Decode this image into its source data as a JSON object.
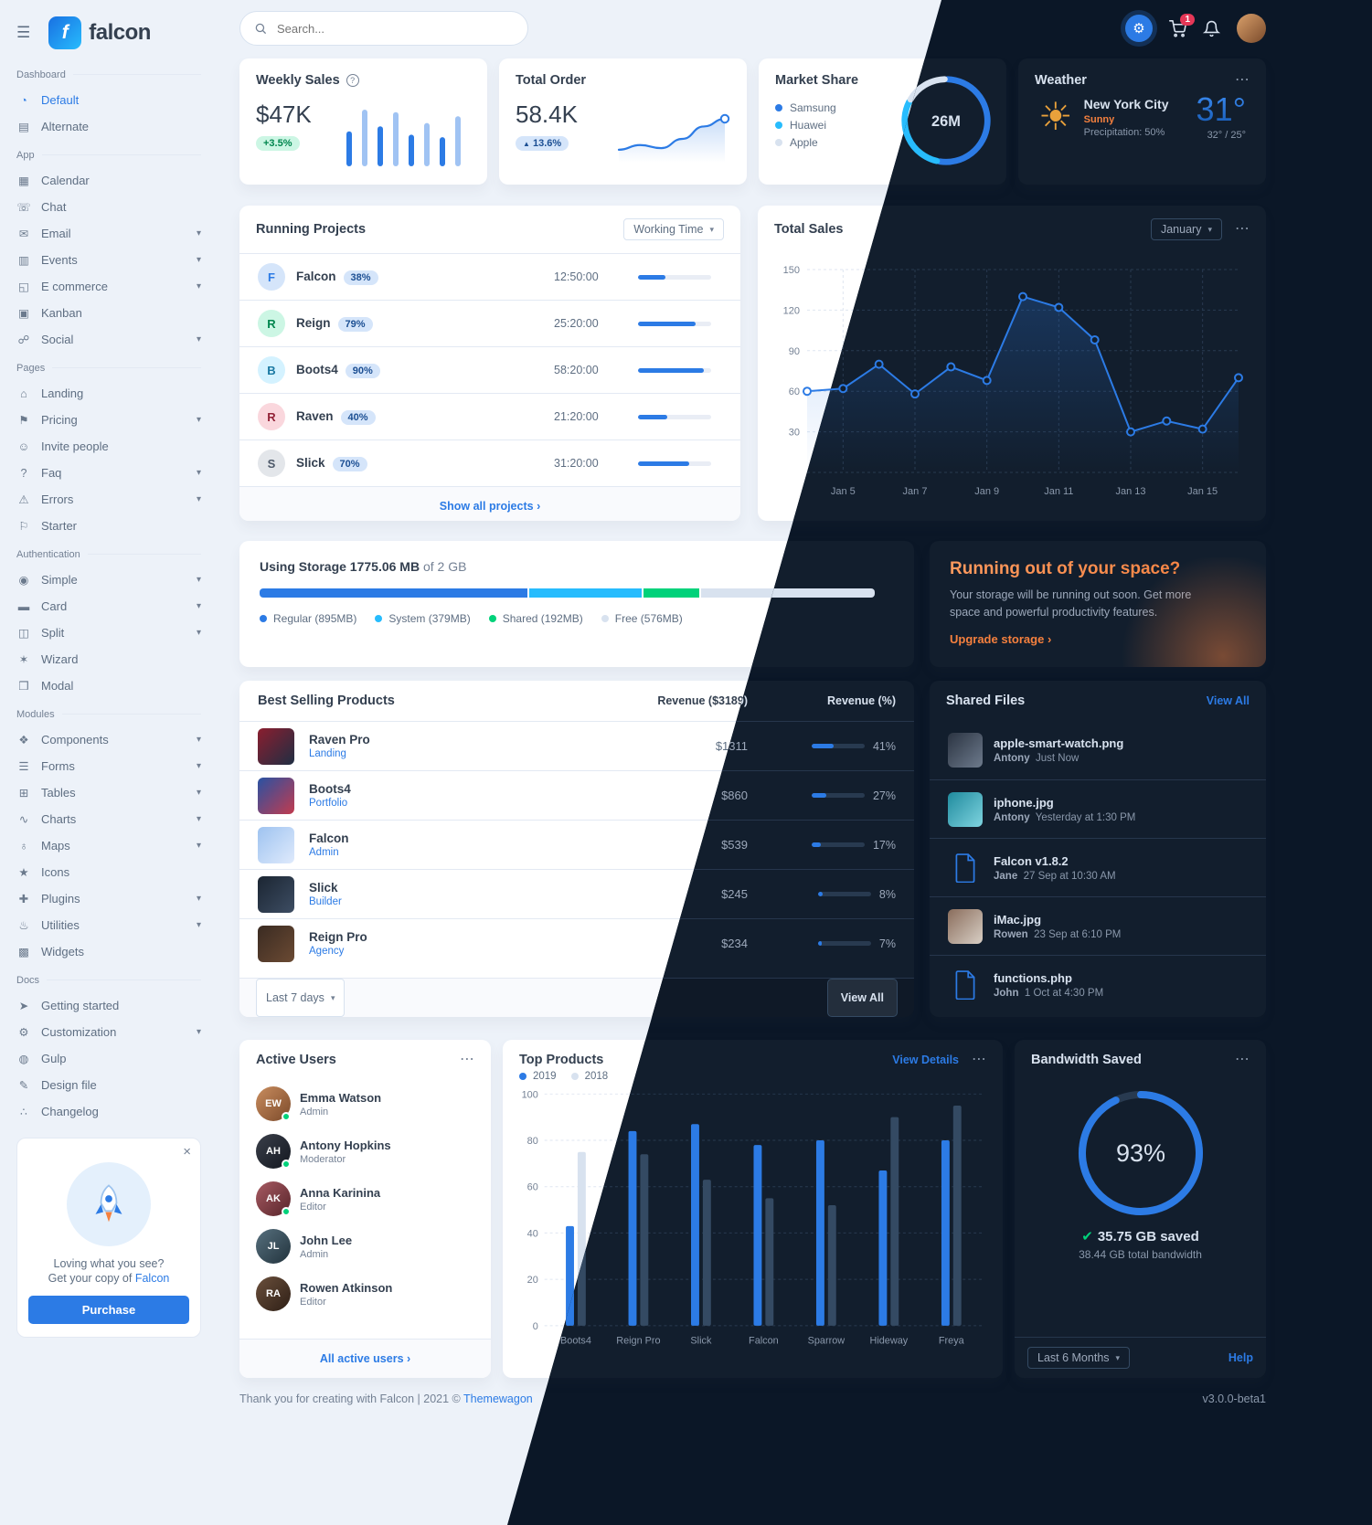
{
  "brand": {
    "name": "falcon",
    "logo_letter": "f"
  },
  "icons": {
    "menu": "☰",
    "gear": "⚙",
    "chevron_down": "▾",
    "chevron_right": "›",
    "more": "⋯",
    "close": "×",
    "check": "✔",
    "arrow_up": "▲",
    "info": "?",
    "sun": "☀"
  },
  "icon_glyphs": {
    "pie": "◔",
    "chart": "▤",
    "calendar": "▦",
    "chat": "☏",
    "email": "✉",
    "events": "▥",
    "ecommerce": "◱",
    "kanban": "▣",
    "social": "☍",
    "landing": "⌂",
    "pricing": "⚑",
    "invite": "☺",
    "faq": "?",
    "errors": "⚠",
    "starter": "⚐",
    "lock": "◉",
    "card": "▬",
    "split": "◫",
    "wizard": "✶",
    "modal": "❒",
    "components": "❖",
    "forms": "☰",
    "tables": "⊞",
    "charts": "∿",
    "maps": "♁",
    "icons": "★",
    "plugins": "✚",
    "utilities": "♨",
    "widgets": "▩",
    "rocket": "➤",
    "wrench": "⚙",
    "gulp": "◍",
    "design": "✎",
    "changelog": "∴"
  },
  "topbar": {
    "search_placeholder": "Search...",
    "cart_badge": "1"
  },
  "sidebar": {
    "sections": [
      {
        "label": "Dashboard",
        "items": [
          {
            "label": "Default",
            "icon": "pie",
            "active": true
          },
          {
            "label": "Alternate",
            "icon": "chart"
          }
        ]
      },
      {
        "label": "App",
        "items": [
          {
            "label": "Calendar",
            "icon": "calendar"
          },
          {
            "label": "Chat",
            "icon": "chat"
          },
          {
            "label": "Email",
            "icon": "email",
            "caret": true
          },
          {
            "label": "Events",
            "icon": "events",
            "caret": true
          },
          {
            "label": "E commerce",
            "icon": "ecommerce",
            "caret": true
          },
          {
            "label": "Kanban",
            "icon": "kanban"
          },
          {
            "label": "Social",
            "icon": "social",
            "caret": true
          }
        ]
      },
      {
        "label": "Pages",
        "items": [
          {
            "label": "Landing",
            "icon": "landing"
          },
          {
            "label": "Pricing",
            "icon": "pricing",
            "caret": true
          },
          {
            "label": "Invite people",
            "icon": "invite"
          },
          {
            "label": "Faq",
            "icon": "faq",
            "caret": true
          },
          {
            "label": "Errors",
            "icon": "errors",
            "caret": true
          },
          {
            "label": "Starter",
            "icon": "starter"
          }
        ]
      },
      {
        "label": "Authentication",
        "items": [
          {
            "label": "Simple",
            "icon": "lock",
            "caret": true
          },
          {
            "label": "Card",
            "icon": "card",
            "caret": true
          },
          {
            "label": "Split",
            "icon": "split",
            "caret": true
          },
          {
            "label": "Wizard",
            "icon": "wizard"
          },
          {
            "label": "Modal",
            "icon": "modal"
          }
        ]
      },
      {
        "label": "Modules",
        "items": [
          {
            "label": "Components",
            "icon": "components",
            "caret": true
          },
          {
            "label": "Forms",
            "icon": "forms",
            "caret": true
          },
          {
            "label": "Tables",
            "icon": "tables",
            "caret": true
          },
          {
            "label": "Charts",
            "icon": "charts",
            "caret": true
          },
          {
            "label": "Maps",
            "icon": "maps",
            "caret": true
          },
          {
            "label": "Icons",
            "icon": "icons"
          },
          {
            "label": "Plugins",
            "icon": "plugins",
            "caret": true
          },
          {
            "label": "Utilities",
            "icon": "utilities",
            "caret": true
          },
          {
            "label": "Widgets",
            "icon": "widgets"
          }
        ]
      },
      {
        "label": "Docs",
        "items": [
          {
            "label": "Getting started",
            "icon": "rocket"
          },
          {
            "label": "Customization",
            "icon": "wrench",
            "caret": true
          },
          {
            "label": "Gulp",
            "icon": "gulp"
          },
          {
            "label": "Design file",
            "icon": "design"
          },
          {
            "label": "Changelog",
            "icon": "changelog"
          }
        ]
      }
    ],
    "promo": {
      "line1": "Loving what you see?",
      "line2_prefix": "Get your copy of",
      "line2_link": "Falcon",
      "button": "Purchase"
    }
  },
  "cards": {
    "weekly_sales": {
      "title": "Weekly Sales",
      "value": "$47K",
      "badge": "+3.5%",
      "chart": {
        "type": "bar",
        "values": [
          42,
          68,
          48,
          65,
          38,
          52,
          35,
          60
        ]
      }
    },
    "total_order": {
      "title": "Total Order",
      "value": "58.4K",
      "badge": "13.6%",
      "chart": {
        "type": "line",
        "values": [
          12,
          18,
          14,
          26,
          42,
          52
        ]
      }
    },
    "market_share": {
      "title": "Market Share",
      "center": "26M",
      "legend": [
        {
          "label": "Samsung",
          "color": "#2c7be5",
          "value": 53
        },
        {
          "label": "Huawei",
          "color": "#27bcfd",
          "value": 30
        },
        {
          "label": "Apple",
          "color": "#d8e2ef",
          "value": 17
        }
      ]
    },
    "weather": {
      "title": "Weather",
      "city": "New York City",
      "condition": "Sunny",
      "precipitation": "Precipitation: 50%",
      "temp": "31°",
      "range": "32° / 25°"
    },
    "running_projects": {
      "title": "Running Projects",
      "filter": "Working Time",
      "show_all": "Show all projects",
      "projects": [
        {
          "initial": "F",
          "name": "Falcon",
          "percent": "38%",
          "time": "12:50:00",
          "progress": 38,
          "color": "#2c7be5",
          "bg": "#d5e5fa"
        },
        {
          "initial": "R",
          "name": "Reign",
          "percent": "79%",
          "time": "25:20:00",
          "progress": 79,
          "color": "#00864e",
          "bg": "#ccf6e4"
        },
        {
          "initial": "B",
          "name": "Boots4",
          "percent": "90%",
          "time": "58:20:00",
          "progress": 90,
          "color": "#1978a2",
          "bg": "#d4f2ff"
        },
        {
          "initial": "R",
          "name": "Raven",
          "percent": "40%",
          "time": "21:20:00",
          "progress": 40,
          "color": "#932338",
          "bg": "#fad7dd"
        },
        {
          "initial": "S",
          "name": "Slick",
          "percent": "70%",
          "time": "31:20:00",
          "progress": 70,
          "color": "#4d5969",
          "bg": "#e3e6ea"
        }
      ]
    },
    "total_sales": {
      "title": "Total Sales",
      "month": "January",
      "chart": {
        "type": "line",
        "x_labels": [
          "Jan 5",
          "Jan 7",
          "Jan 9",
          "Jan 11",
          "Jan 13",
          "Jan 15"
        ],
        "y_ticks": [
          150,
          120,
          90,
          60,
          30
        ],
        "ylim": [
          0,
          150
        ],
        "values": [
          60,
          62,
          80,
          58,
          78,
          68,
          130,
          122,
          98,
          30,
          38,
          32,
          70
        ]
      }
    },
    "storage": {
      "title": "Using Storage",
      "used": "1775.06 MB",
      "total": "of 2 GB",
      "segments": [
        {
          "label": "Regular (895MB)",
          "mb": 895,
          "color": "#2c7be5"
        },
        {
          "label": "System (379MB)",
          "mb": 379,
          "color": "#27bcfd"
        },
        {
          "label": "Shared (192MB)",
          "mb": 192,
          "color": "#00d27a"
        },
        {
          "label": "Free (576MB)",
          "mb": 576,
          "color": "#d8e2ef"
        }
      ]
    },
    "space": {
      "title": "Running out of your space?",
      "body": "Your storage will be running out soon. Get more space and powerful productivity features.",
      "link": "Upgrade storage"
    },
    "best_selling": {
      "title": "Best Selling Products",
      "col_revenue": "Revenue ($3189)",
      "col_percent": "Revenue (%)",
      "footer_filter": "Last 7 days",
      "view_all": "View All",
      "products": [
        {
          "name": "Raven Pro",
          "category": "Landing",
          "revenue": "$1311",
          "percent": 41,
          "thumb": [
            "#8b1e2f",
            "#1f2e43"
          ]
        },
        {
          "name": "Boots4",
          "category": "Portfolio",
          "revenue": "$860",
          "percent": 27,
          "thumb": [
            "#2952a3",
            "#c23b4e"
          ]
        },
        {
          "name": "Falcon",
          "category": "Admin",
          "revenue": "$539",
          "percent": 17,
          "thumb": [
            "#9ec3f0",
            "#dfeafc"
          ]
        },
        {
          "name": "Slick",
          "category": "Builder",
          "revenue": "$245",
          "percent": 8,
          "thumb": [
            "#1b2532",
            "#3d4d63"
          ]
        },
        {
          "name": "Reign Pro",
          "category": "Agency",
          "revenue": "$234",
          "percent": 7,
          "thumb": [
            "#3a2b22",
            "#6b4a33"
          ]
        }
      ]
    },
    "shared_files": {
      "title": "Shared Files",
      "view_all": "View All",
      "files": [
        {
          "name": "apple-smart-watch.png",
          "user": "Antony",
          "meta": "Just Now",
          "kind": "image",
          "colors": [
            "#2b3442",
            "#6d7a8c"
          ]
        },
        {
          "name": "iphone.jpg",
          "user": "Antony",
          "meta": "Yesterday at 1:30 PM",
          "kind": "image",
          "colors": [
            "#1f8a9d",
            "#7fd4e0"
          ]
        },
        {
          "name": "Falcon v1.8.2",
          "user": "Jane",
          "meta": "27 Sep at 10:30 AM",
          "kind": "file"
        },
        {
          "name": "iMac.jpg",
          "user": "Rowen",
          "meta": "23 Sep at 6:10 PM",
          "kind": "image",
          "colors": [
            "#8a6d5c",
            "#d8cfc5"
          ]
        },
        {
          "name": "functions.php",
          "user": "John",
          "meta": "1 Oct at 4:30 PM",
          "kind": "file"
        }
      ]
    },
    "active_users": {
      "title": "Active Users",
      "footer": "All active users",
      "users": [
        {
          "name": "Emma Watson",
          "role": "Admin",
          "colors": [
            "#c98d5f",
            "#7c4a2a"
          ],
          "online": true
        },
        {
          "name": "Antony Hopkins",
          "role": "Moderator",
          "colors": [
            "#3a3f4a",
            "#141820"
          ],
          "online": true
        },
        {
          "name": "Anna Karinina",
          "role": "Editor",
          "colors": [
            "#a85b63",
            "#57242a"
          ],
          "online": true
        },
        {
          "name": "John Lee",
          "role": "Admin",
          "colors": [
            "#57707e",
            "#22333d"
          ],
          "online": false
        },
        {
          "name": "Rowen Atkinson",
          "role": "Editor",
          "colors": [
            "#6b503c",
            "#2e1f16"
          ],
          "online": false
        }
      ]
    },
    "top_products": {
      "title": "Top Products",
      "view_details": "View Details",
      "legend": [
        {
          "label": "2019",
          "color": "#2c7be5"
        },
        {
          "label": "2018",
          "color": "#d8e2ef"
        }
      ],
      "chart": {
        "type": "bar",
        "categories": [
          "Boots4",
          "Reign Pro",
          "Slick",
          "Falcon",
          "Sparrow",
          "Hideway",
          "Freya"
        ],
        "series": [
          {
            "name": "2019",
            "values": [
              43,
              84,
              87,
              78,
              80,
              67,
              80
            ]
          },
          {
            "name": "2018",
            "values": [
              75,
              74,
              63,
              55,
              52,
              90,
              95
            ]
          }
        ],
        "y_ticks": [
          0,
          20,
          40,
          60,
          80,
          100
        ],
        "ylim": [
          0,
          100
        ]
      }
    },
    "bandwidth": {
      "title": "Bandwidth Saved",
      "percent": 93,
      "saved": "35.75 GB saved",
      "total": "38.44 GB total bandwidth",
      "filter": "Last 6 Months",
      "help": "Help"
    }
  },
  "footer": {
    "prefix": "Thank you for creating with Falcon | 2021 © ",
    "link": "Themewagon",
    "version": "v3.0.0-beta1"
  }
}
